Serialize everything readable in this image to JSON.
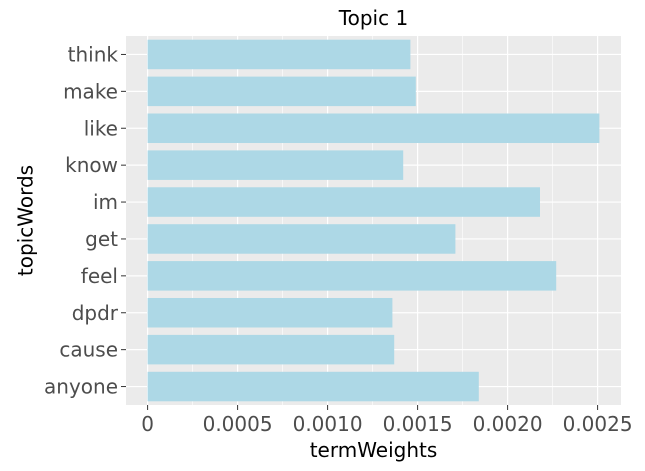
{
  "chart_data": {
    "type": "bar",
    "orientation": "horizontal",
    "title": "Topic 1",
    "xlabel": "termWeights",
    "ylabel": "topicWords",
    "categories": [
      "think",
      "make",
      "like",
      "know",
      "im",
      "get",
      "feel",
      "dpdr",
      "cause",
      "anyone"
    ],
    "values": [
      0.00146,
      0.00149,
      0.00251,
      0.00142,
      0.00218,
      0.00171,
      0.00227,
      0.00136,
      0.00137,
      0.00184
    ],
    "xlim": [
      -0.00012,
      0.00263
    ],
    "xticks": [
      0,
      0.0005,
      0.001,
      0.0015,
      0.002,
      0.0025
    ],
    "xtick_labels": [
      "0",
      "0.0005",
      "0.0010",
      "0.0015",
      "0.0020",
      "0.0025"
    ],
    "grid": true,
    "colors": {
      "bar": "#add8e6",
      "panel": "#ebebeb",
      "grid": "#ffffff",
      "tick_text": "#4d4d4d"
    }
  }
}
